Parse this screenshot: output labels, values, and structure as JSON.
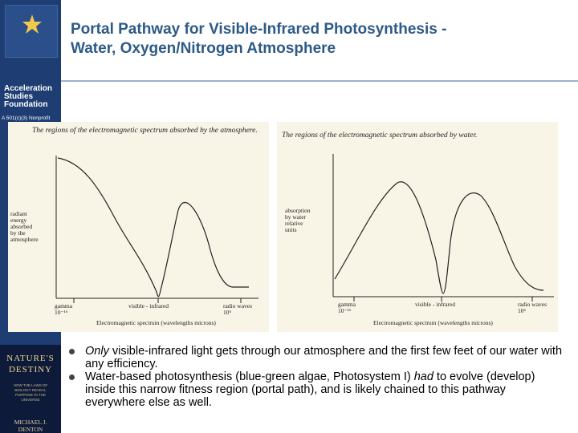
{
  "slide": {
    "title_line1": "Portal Pathway for Visible-Infrared Photosynthesis -",
    "title_line2": "Water, Oxygen/Nitrogen Atmosphere"
  },
  "sidebar": {
    "org_line1": "Acceleration",
    "org_line2": "Studies",
    "org_line3": "Foundation",
    "tagline": "A 501(c)(3) Nonprofit",
    "book": {
      "title_line1": "NATURE'S",
      "title_line2": "DESTINY",
      "subtitle": "HOW THE LAWS OF BIOLOGY REVEAL PURPOSE IN THE UNIVERSE",
      "author": "MICHAEL J. DENTON"
    }
  },
  "figures": {
    "left": {
      "caption": "The regions of the electromagnetic spectrum absorbed by the atmosphere.",
      "ylabel_lines": [
        "radiant",
        "energy",
        "absorbed",
        "by the",
        "atmosphere"
      ],
      "tick_gamma": "gamma",
      "tick_gamma_val": "10⁻¹⁶",
      "tick_mid": "visible - infrared",
      "tick_radio": "radio waves",
      "tick_radio_val": "10⁶",
      "xlabel": "Electromagnetic spectrum (wavelengths microns)"
    },
    "right": {
      "caption": "The regions of the electromagnetic spectrum absorbed by water.",
      "ylabel_lines": [
        "absorption",
        "by water",
        "relative",
        "units"
      ],
      "tick_gamma": "gamma",
      "tick_gamma_val": "10⁻¹⁶",
      "tick_mid": "visible - infrared",
      "tick_radio": "radio waves",
      "tick_radio_val": "10⁶",
      "xlabel": "Electromagnetic spectrum (wavelengths microns)"
    }
  },
  "bullets": {
    "b1_em": "Only",
    "b1_rest": " visible-infrared light gets through our atmosphere and the first few feet of our water with any efficiency.",
    "b2_a": "Water-based photosynthesis (blue-green algae, Photosystem I) ",
    "b2_em": "had",
    "b2_b": " to evolve (develop) inside this narrow fitness region (portal path), and is likely chained to this pathway everywhere else as well."
  },
  "colors": {
    "title": "#2d5a86",
    "sidebar": "#1e3d73",
    "figure_bg": "#f8f5e6"
  }
}
